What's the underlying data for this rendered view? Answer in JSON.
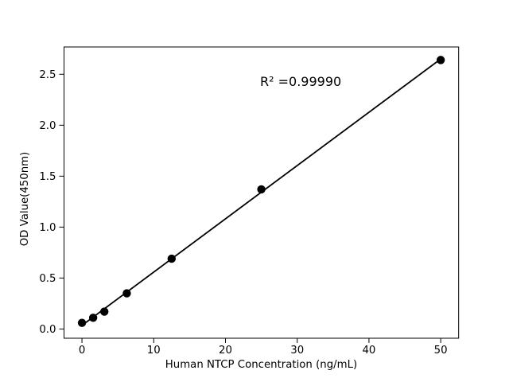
{
  "chart_data": {
    "type": "scatter",
    "title": "",
    "xlabel": "Human NTCP Concentration (ng/mL)",
    "ylabel": "OD Value(450nm)",
    "annotation": "R² =0.99990",
    "x": [
      0,
      1.56,
      3.12,
      6.25,
      12.5,
      25,
      50
    ],
    "y": [
      0.06,
      0.11,
      0.17,
      0.35,
      0.69,
      1.37,
      2.64
    ],
    "fit": {
      "slope": 0.0523,
      "intercept": 0.035,
      "x_start": 0,
      "x_end": 50
    },
    "xlim": [
      -2.5,
      52.5
    ],
    "ylim": [
      -0.091,
      2.768
    ],
    "xtick_values": [
      0,
      10,
      20,
      30,
      40,
      50
    ],
    "xtick_labels": [
      "0",
      "10",
      "20",
      "30",
      "40",
      "50"
    ],
    "ytick_values": [
      0.0,
      0.5,
      1.0,
      1.5,
      2.0,
      2.5
    ],
    "ytick_labels": [
      "0.0",
      "0.5",
      "1.0",
      "1.5",
      "2.0",
      "2.5"
    ],
    "grid": false,
    "legend": "none",
    "colors": {
      "background": "#ffffff",
      "points": "#000000",
      "line": "#000000",
      "spine": "#000000",
      "text": "#000000"
    }
  }
}
